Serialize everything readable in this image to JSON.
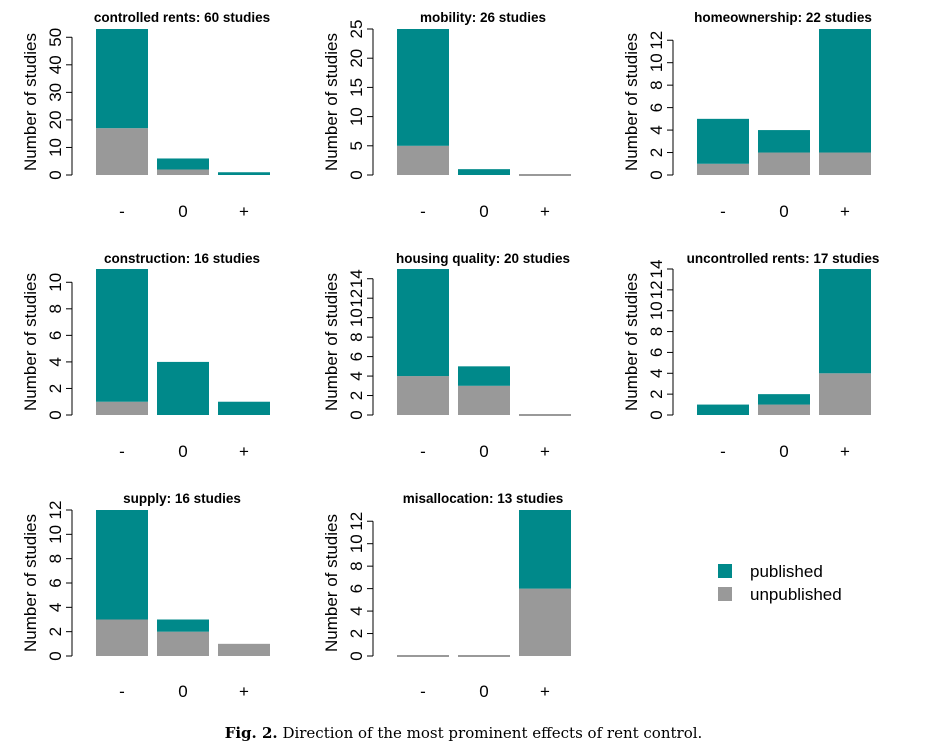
{
  "caption": {
    "label": "Fig. 2.",
    "text": "Direction of the most prominent effects of rent control."
  },
  "colors": {
    "published": "#00898a",
    "unpublished": "#999999"
  },
  "chart_data": [
    {
      "type": "bar",
      "stacked": true,
      "title": "controlled rents: 60 studies",
      "xlabel": "",
      "ylabel": "Number of studies",
      "categories": [
        "-",
        "0",
        "+"
      ],
      "ylim": [
        0,
        53
      ],
      "yticks": [
        0,
        10,
        20,
        30,
        40,
        50
      ],
      "series": [
        {
          "name": "unpublished",
          "values": [
            17,
            2,
            0
          ]
        },
        {
          "name": "published",
          "values": [
            36,
            4,
            1
          ]
        }
      ]
    },
    {
      "type": "bar",
      "stacked": true,
      "title": "mobility: 26 studies",
      "xlabel": "",
      "ylabel": "Number of studies",
      "categories": [
        "-",
        "0",
        "+"
      ],
      "ylim": [
        0,
        25
      ],
      "yticks": [
        0,
        5,
        10,
        15,
        20,
        25
      ],
      "series": [
        {
          "name": "unpublished",
          "values": [
            5,
            0,
            0
          ]
        },
        {
          "name": "published",
          "values": [
            20,
            1,
            0
          ]
        }
      ]
    },
    {
      "type": "bar",
      "stacked": true,
      "title": "homeownership: 22 studies",
      "xlabel": "",
      "ylabel": "Number of studies",
      "categories": [
        "-",
        "0",
        "+"
      ],
      "ylim": [
        0,
        13
      ],
      "yticks": [
        0,
        2,
        4,
        6,
        8,
        10,
        12
      ],
      "series": [
        {
          "name": "unpublished",
          "values": [
            1,
            2,
            2
          ]
        },
        {
          "name": "published",
          "values": [
            4,
            2,
            11
          ]
        }
      ]
    },
    {
      "type": "bar",
      "stacked": true,
      "title": "construction: 16 studies",
      "xlabel": "",
      "ylabel": "Number of studies",
      "categories": [
        "-",
        "0",
        "+"
      ],
      "ylim": [
        0,
        11
      ],
      "yticks": [
        0,
        2,
        4,
        6,
        8,
        10
      ],
      "series": [
        {
          "name": "unpublished",
          "values": [
            1,
            0,
            0
          ]
        },
        {
          "name": "published",
          "values": [
            10,
            4,
            1
          ]
        }
      ]
    },
    {
      "type": "bar",
      "stacked": true,
      "title": "housing quality: 20 studies",
      "xlabel": "",
      "ylabel": "Number of studies",
      "categories": [
        "-",
        "0",
        "+"
      ],
      "ylim": [
        0,
        15
      ],
      "yticks": [
        0,
        2,
        4,
        6,
        8,
        10,
        12,
        14
      ],
      "series": [
        {
          "name": "unpublished",
          "values": [
            4,
            3,
            0
          ]
        },
        {
          "name": "published",
          "values": [
            11,
            2,
            0
          ]
        }
      ]
    },
    {
      "type": "bar",
      "stacked": true,
      "title": "uncontrolled rents: 17 studies",
      "xlabel": "",
      "ylabel": "Number of studies",
      "categories": [
        "-",
        "0",
        "+"
      ],
      "ylim": [
        0,
        14
      ],
      "yticks": [
        0,
        2,
        4,
        6,
        8,
        10,
        12,
        14
      ],
      "series": [
        {
          "name": "unpublished",
          "values": [
            0,
            1,
            4
          ]
        },
        {
          "name": "published",
          "values": [
            1,
            1,
            10
          ]
        }
      ]
    },
    {
      "type": "bar",
      "stacked": true,
      "title": "supply: 16 studies",
      "xlabel": "",
      "ylabel": "Number of studies",
      "categories": [
        "-",
        "0",
        "+"
      ],
      "ylim": [
        0,
        12
      ],
      "yticks": [
        0,
        2,
        4,
        6,
        8,
        10,
        12
      ],
      "series": [
        {
          "name": "unpublished",
          "values": [
            3,
            2,
            1
          ]
        },
        {
          "name": "published",
          "values": [
            9,
            1,
            0
          ]
        }
      ]
    },
    {
      "type": "bar",
      "stacked": true,
      "title": "misallocation: 13 studies",
      "xlabel": "",
      "ylabel": "Number of studies",
      "categories": [
        "-",
        "0",
        "+"
      ],
      "ylim": [
        0,
        13
      ],
      "yticks": [
        0,
        2,
        4,
        6,
        8,
        10,
        12
      ],
      "series": [
        {
          "name": "unpublished",
          "values": [
            0,
            0,
            6
          ]
        },
        {
          "name": "published",
          "values": [
            0,
            0,
            7
          ]
        }
      ]
    }
  ],
  "legend": {
    "placement": "bottom-right",
    "items": [
      {
        "name": "published",
        "label": "published"
      },
      {
        "name": "unpublished",
        "label": "unpublished"
      }
    ]
  }
}
